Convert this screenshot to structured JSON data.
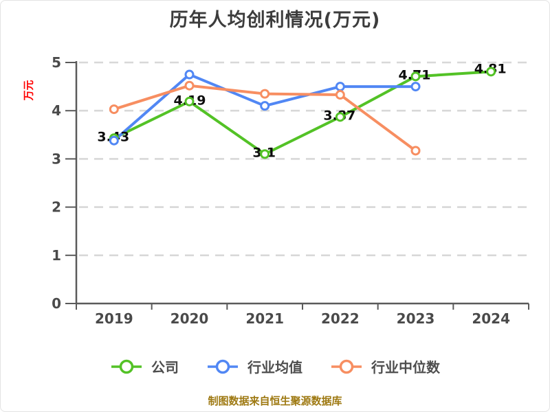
{
  "title": "历年人均创利情况(万元)",
  "footer": {
    "text": "制图数据来自恒生聚源数据库"
  },
  "colors": {
    "title_text": "#3c3c3c",
    "axis_text": "#4a4a4a",
    "axis_line": "#5a5a5a",
    "gridline": "#d8d8d8",
    "data_label": "#0d0d0d",
    "unit_label": "#ff0000",
    "footer_text": "#9e7912",
    "legend_text": "#4d4d4d",
    "background": "#ffffff"
  },
  "chart_data": {
    "type": "line",
    "title": "历年人均创利情况(万元)",
    "ylabel": "万元",
    "xlabel": "",
    "categories": [
      "2019",
      "2020",
      "2021",
      "2022",
      "2023",
      "2024"
    ],
    "series": [
      {
        "key": "company",
        "name": "公司",
        "color": "#53c226",
        "values": [
          3.43,
          4.19,
          3.1,
          3.87,
          4.71,
          4.81
        ],
        "point_labels": [
          "3.43",
          "4.19",
          "3.1",
          "3.87",
          "4.71",
          "4.81"
        ]
      },
      {
        "key": "industry-average",
        "name": "行业均值",
        "color": "#5187f4",
        "values": [
          3.38,
          4.75,
          4.1,
          4.5,
          4.5,
          null
        ]
      },
      {
        "key": "industry-median",
        "name": "行业中位数",
        "color": "#f78e61",
        "values": [
          4.03,
          4.52,
          4.35,
          4.33,
          3.17,
          null
        ]
      }
    ],
    "ylim": [
      0,
      5
    ],
    "yticks": [
      0,
      1,
      2,
      3,
      4,
      5
    ],
    "grid": "horizontal-dashed",
    "legend_position": "bottom",
    "marker": "circle-white-fill"
  }
}
